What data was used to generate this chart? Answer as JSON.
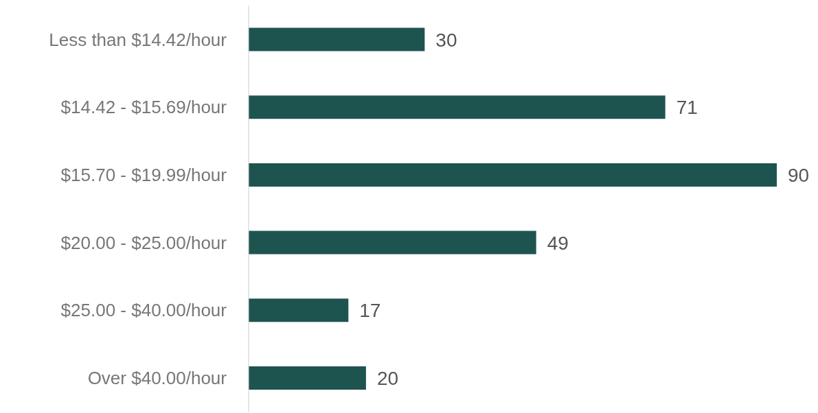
{
  "chart_data": {
    "type": "bar",
    "orientation": "horizontal",
    "categories": [
      "Less than $14.42/hour",
      "$14.42 - $15.69/hour",
      "$15.70 - $19.99/hour",
      "$20.00 - $25.00/hour",
      "$25.00 - $40.00/hour",
      "Over $40.00/hour"
    ],
    "values": [
      30,
      71,
      90,
      49,
      17,
      20
    ],
    "color": "#1e5450",
    "data_labels": true,
    "grid": false,
    "legend": false
  }
}
